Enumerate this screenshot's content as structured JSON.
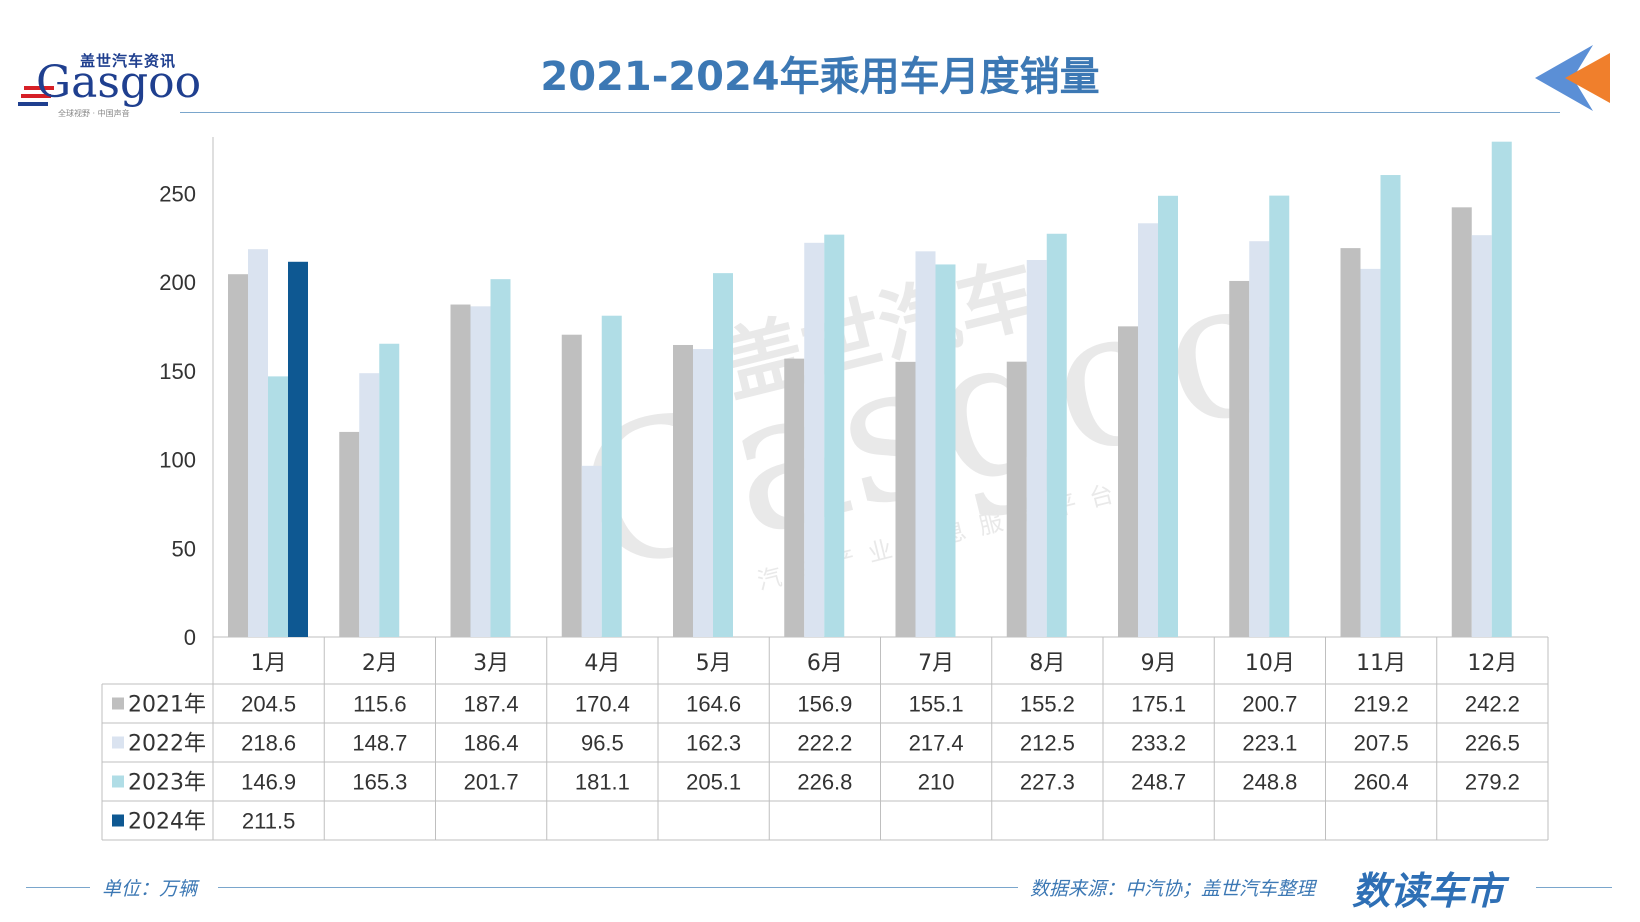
{
  "header": {
    "title": "2021-2024年乘用车月度销量"
  },
  "logo": {
    "cn_text": "盖世汽车资讯",
    "en_text": "Gasgoo",
    "slogan": "全球视野 · 中国声音",
    "brand_color": "#1f3f8f",
    "stripe_color": "#d62027"
  },
  "watermark": {
    "cn_text": "盖世汽车",
    "en_text": "Gasgoo",
    "sub_text": "汽车产业信息服务平台"
  },
  "footer": {
    "unit": "单位：万辆",
    "source": "数据来源：中汽协；盖世汽车整理",
    "brand": "数读车市"
  },
  "colors": {
    "title": "#3c78b4",
    "rule": "#7aa6cc",
    "arrow_blue": "#5b8fd6",
    "arrow_orange": "#f07f2c"
  },
  "chart_data": {
    "type": "bar",
    "title": "2021-2024年乘用车月度销量",
    "xlabel": "",
    "ylabel": "",
    "ylim": [
      0,
      280
    ],
    "yticks": [
      0,
      50,
      100,
      150,
      200,
      250
    ],
    "grid": false,
    "legend": "data-table",
    "categories": [
      "1月",
      "2月",
      "3月",
      "4月",
      "5月",
      "6月",
      "7月",
      "8月",
      "9月",
      "10月",
      "11月",
      "12月"
    ],
    "series": [
      {
        "name": "2021年",
        "color": "#bfbfbf",
        "values": [
          204.5,
          115.6,
          187.4,
          170.4,
          164.6,
          156.9,
          155.1,
          155.2,
          175.1,
          200.7,
          219.2,
          242.2
        ],
        "labels": [
          "204.5",
          "115.6",
          "187.4",
          "170.4",
          "164.6",
          "156.9",
          "155.1",
          "155.2",
          "175.1",
          "200.7",
          "219.2",
          "242.2"
        ]
      },
      {
        "name": "2022年",
        "color": "#dae3f0",
        "values": [
          218.6,
          148.7,
          186.4,
          96.5,
          162.3,
          222.2,
          217.4,
          212.5,
          233.2,
          223.1,
          207.5,
          226.5
        ],
        "labels": [
          "218.6",
          "148.7",
          "186.4",
          "96.5",
          "162.3",
          "222.2",
          "217.4",
          "212.5",
          "233.2",
          "223.1",
          "207.5",
          "226.5"
        ]
      },
      {
        "name": "2023年",
        "color": "#b0dde6",
        "values": [
          146.9,
          165.3,
          201.7,
          181.1,
          205.1,
          226.8,
          210,
          227.3,
          248.7,
          248.8,
          260.4,
          279.2
        ],
        "labels": [
          "146.9",
          "165.3",
          "201.7",
          "181.1",
          "205.1",
          "226.8",
          "210",
          "227.3",
          "248.7",
          "248.8",
          "260.4",
          "279.2"
        ]
      },
      {
        "name": "2024年",
        "color": "#0e5892",
        "values": [
          211.5,
          null,
          null,
          null,
          null,
          null,
          null,
          null,
          null,
          null,
          null,
          null
        ],
        "labels": [
          "211.5",
          "",
          "",
          "",
          "",
          "",
          "",
          "",
          "",
          "",
          "",
          ""
        ]
      }
    ]
  }
}
